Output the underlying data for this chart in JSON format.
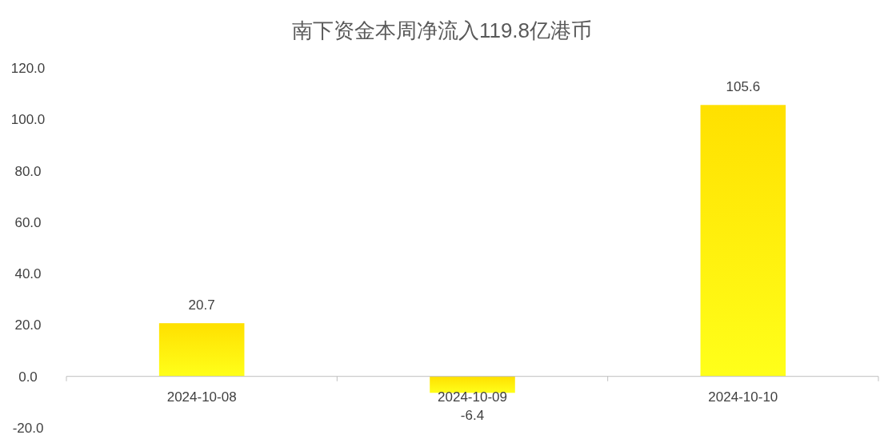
{
  "chart_data": {
    "type": "bar",
    "title": "南下资金本周净流入119.8亿港币",
    "categories": [
      "2024-10-08",
      "2024-10-09",
      "2024-10-10"
    ],
    "values": [
      20.7,
      -6.4,
      105.6
    ],
    "color": "#ffe000",
    "ylim": [
      -20,
      120
    ],
    "yticks": [
      {
        "value": -20,
        "label": "-20.0"
      },
      {
        "value": 0,
        "label": "0.0"
      },
      {
        "value": 20,
        "label": "20.0"
      },
      {
        "value": 40,
        "label": "40.0"
      },
      {
        "value": 60,
        "label": "60.0"
      },
      {
        "value": 80,
        "label": "80.0"
      },
      {
        "value": 100,
        "label": "100.0"
      },
      {
        "value": 120,
        "label": "120.0"
      }
    ],
    "data_labels": true,
    "grid": false
  }
}
